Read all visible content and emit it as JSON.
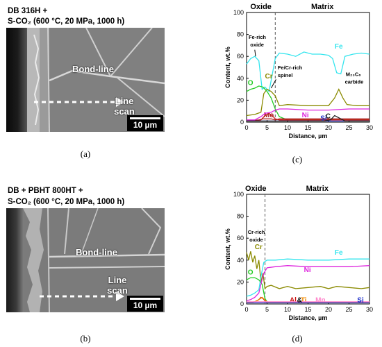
{
  "panel_a": {
    "title_line1": "DB 316H +",
    "title_line2": "S-CO₂ (600 °C, 20 MPa, 1000 h)",
    "label_bondline": "Bond-line",
    "label_line": "Line",
    "label_scan": "scan",
    "scalebar": "10 µm",
    "caption": "(a)"
  },
  "panel_b": {
    "title_line1": "DB + PBHT 800HT +",
    "title_line2": "S-CO₂ (600 °C, 20 MPa, 1000 h)",
    "label_bondline": "Bond-line",
    "label_line": "Line",
    "label_scan": "scan",
    "scalebar": "10 µm",
    "caption": "(b)"
  },
  "chart_data": [
    {
      "type": "line",
      "panel": "c",
      "caption": "(c)",
      "xlabel": "Distance, µm",
      "ylabel": "Content, wt.%",
      "xlim": [
        0,
        30
      ],
      "ylim": [
        0,
        100
      ],
      "xticks": [
        0,
        5,
        10,
        15,
        20,
        25,
        30
      ],
      "yticks": [
        0,
        20,
        40,
        60,
        80,
        100
      ],
      "region_labels": [
        "Oxide",
        "Matrix"
      ],
      "divider_x": 7,
      "annotations": [
        "Fe-rich oxide",
        "Fe/Cr-rich spinel",
        "M₂₃C₆ carbide",
        "C"
      ],
      "series": [
        {
          "name": "Fe",
          "color": "#33e5ee",
          "x": [
            0,
            1,
            2,
            3,
            3.8,
            4.5,
            5.5,
            7,
            8,
            10,
            12,
            14,
            16,
            18,
            20,
            21,
            22,
            23,
            24,
            26,
            28,
            30
          ],
          "y": [
            53,
            58,
            60,
            56,
            30,
            32,
            28,
            58,
            63,
            62,
            60,
            64,
            62,
            62,
            61,
            58,
            45,
            44,
            60,
            62,
            63,
            62
          ]
        },
        {
          "name": "Cr",
          "color": "#8a8a00",
          "x": [
            0,
            2,
            3.5,
            4.2,
            5,
            6,
            7,
            8,
            10,
            15,
            20,
            21.5,
            22.5,
            23.5,
            24.5,
            27,
            30
          ],
          "y": [
            6,
            7,
            9,
            26,
            30,
            28,
            24,
            15,
            16,
            15,
            15,
            22,
            30,
            22,
            16,
            15,
            15
          ]
        },
        {
          "name": "O",
          "color": "#22cc22",
          "x": [
            0,
            1,
            2,
            3,
            4,
            5,
            6,
            7,
            8,
            10,
            20,
            30
          ],
          "y": [
            28,
            30,
            31,
            33,
            32,
            28,
            22,
            12,
            5,
            2,
            2,
            2
          ]
        },
        {
          "name": "Fe/Cr-rich spinel",
          "color": "#cc1111",
          "x": [
            0,
            2,
            3.5,
            4.5,
            5.5,
            6.5,
            7,
            8,
            10,
            30
          ],
          "y": [
            1,
            1,
            2,
            6,
            8,
            5,
            3,
            2,
            2,
            2
          ]
        },
        {
          "name": "Mo",
          "color": "#aa2222",
          "x": [
            0,
            3,
            4,
            5,
            6,
            7,
            8,
            10,
            20,
            30
          ],
          "y": [
            1,
            2,
            3,
            3,
            3,
            2,
            3,
            3,
            3,
            3
          ]
        },
        {
          "name": "Ni",
          "color": "#dd22dd",
          "x": [
            0,
            2,
            3.5,
            4.5,
            6,
            7,
            8,
            10,
            15,
            20,
            25,
            30
          ],
          "y": [
            2,
            2,
            5,
            8,
            9,
            11,
            12,
            12,
            11,
            11,
            12,
            12
          ]
        },
        {
          "name": "Si",
          "color": "#2233cc",
          "x": [
            0,
            5,
            10,
            15,
            20,
            25,
            30
          ],
          "y": [
            1,
            1,
            1,
            1,
            1,
            1,
            1
          ]
        },
        {
          "name": "C",
          "color": "#222222",
          "x": [
            0,
            10,
            19,
            20.5,
            21.5,
            22.5,
            24,
            30
          ],
          "y": [
            1,
            1,
            1,
            2,
            6,
            4,
            1,
            1
          ]
        }
      ]
    },
    {
      "type": "line",
      "panel": "d",
      "caption": "(d)",
      "xlabel": "Distance, µm",
      "ylabel": "Content, wt.%",
      "xlim": [
        0,
        30
      ],
      "ylim": [
        0,
        100
      ],
      "xticks": [
        0,
        5,
        10,
        15,
        20,
        25,
        30
      ],
      "yticks": [
        0,
        20,
        40,
        60,
        80,
        100
      ],
      "region_labels": [
        "Oxide",
        "Matrix"
      ],
      "divider_x": 4.5,
      "annotations": [
        "Cr-rich oxide",
        "Al&Ti"
      ],
      "series": [
        {
          "name": "Cr",
          "color": "#8a8a00",
          "x": [
            0,
            0.5,
            1,
            1.5,
            2,
            2.5,
            3,
            3.5,
            4,
            4.5,
            5,
            6,
            8,
            10,
            12,
            15,
            18,
            20,
            22,
            25,
            28,
            30
          ],
          "y": [
            47,
            40,
            48,
            38,
            44,
            32,
            40,
            20,
            28,
            14,
            16,
            17,
            14,
            16,
            14,
            15,
            16,
            14,
            16,
            15,
            14,
            15
          ]
        },
        {
          "name": "O",
          "color": "#22cc22",
          "x": [
            0,
            1,
            2,
            3,
            3.8,
            4.5,
            5,
            6,
            8,
            30
          ],
          "y": [
            22,
            24,
            24,
            22,
            18,
            5,
            2,
            1,
            1,
            1
          ]
        },
        {
          "name": "Fe",
          "color": "#33e5ee",
          "x": [
            0,
            1,
            2,
            3,
            3.5,
            4.2,
            5,
            7,
            10,
            15,
            20,
            25,
            30
          ],
          "y": [
            7,
            8,
            10,
            13,
            25,
            38,
            40,
            40,
            41,
            40,
            40,
            41,
            41
          ]
        },
        {
          "name": "Ni",
          "color": "#dd22dd",
          "x": [
            0,
            1,
            2,
            3,
            3.5,
            4.2,
            5,
            7,
            10,
            15,
            20,
            25,
            30
          ],
          "y": [
            3,
            4,
            6,
            10,
            18,
            28,
            33,
            34,
            35,
            34,
            34,
            34,
            35
          ]
        },
        {
          "name": "Al",
          "color": "#cc1111",
          "x": [
            0,
            2,
            3,
            3.5,
            4,
            4.5,
            5,
            6,
            30
          ],
          "y": [
            1,
            2,
            4,
            6,
            5,
            3,
            1,
            1,
            1
          ]
        },
        {
          "name": "Ti",
          "color": "#ee8800",
          "x": [
            0,
            2,
            3,
            3.8,
            4.4,
            5,
            6,
            30
          ],
          "y": [
            1,
            2,
            4,
            6,
            4,
            2,
            1,
            1
          ]
        },
        {
          "name": "Mn",
          "color": "#ff88cc",
          "x": [
            0,
            2,
            4,
            5,
            10,
            20,
            30
          ],
          "y": [
            2,
            2,
            2,
            2,
            2,
            2,
            2
          ]
        },
        {
          "name": "Si",
          "color": "#2233cc",
          "x": [
            0,
            5,
            10,
            15,
            20,
            25,
            30
          ],
          "y": [
            1,
            1,
            1,
            1,
            1,
            1,
            1
          ]
        }
      ]
    }
  ]
}
